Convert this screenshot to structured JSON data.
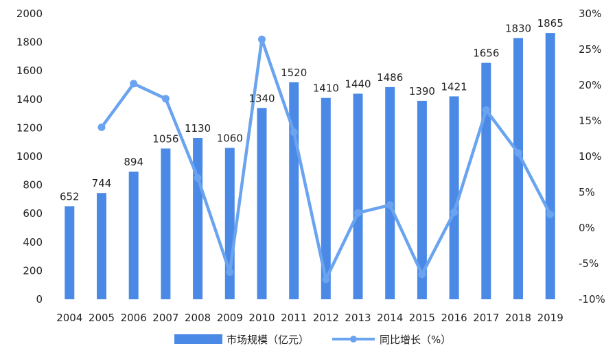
{
  "chart_data": {
    "type": "bar+line",
    "categories": [
      "2004",
      "2005",
      "2006",
      "2007",
      "2008",
      "2009",
      "2010",
      "2011",
      "2012",
      "2013",
      "2014",
      "2015",
      "2016",
      "2017",
      "2018",
      "2019"
    ],
    "series": [
      {
        "name": "市场规模（亿元）",
        "type": "bar",
        "axis": "left",
        "color": "#4a8ae6",
        "values": [
          652,
          744,
          894,
          1056,
          1130,
          1060,
          1340,
          1520,
          1410,
          1440,
          1486,
          1390,
          1421,
          1656,
          1830,
          1865
        ],
        "data_labels": [
          "652",
          "744",
          "894",
          "1056",
          "1130",
          "1060",
          "1340",
          "1520",
          "1410",
          "1440",
          "1486",
          "1390",
          "1421",
          "1656",
          "1830",
          "1865"
        ]
      },
      {
        "name": "同比增长（%）",
        "type": "line",
        "axis": "right",
        "color": "#6aa3ef",
        "values": [
          null,
          14.1,
          20.2,
          18.1,
          7.0,
          -6.2,
          26.4,
          13.4,
          -7.2,
          2.1,
          3.2,
          -6.5,
          2.2,
          16.5,
          10.5,
          1.9
        ]
      }
    ],
    "y_left": {
      "min": 0,
      "max": 2000,
      "step": 200,
      "tick_labels": [
        "0",
        "200",
        "400",
        "600",
        "800",
        "1000",
        "1200",
        "1400",
        "1600",
        "1800",
        "2000"
      ]
    },
    "y_right": {
      "min": -10,
      "max": 30,
      "step": 5,
      "tick_labels": [
        "-10%",
        "-5%",
        "0%",
        "5%",
        "10%",
        "15%",
        "20%",
        "25%",
        "30%"
      ]
    },
    "grid": false,
    "legend_position": "bottom-center"
  }
}
